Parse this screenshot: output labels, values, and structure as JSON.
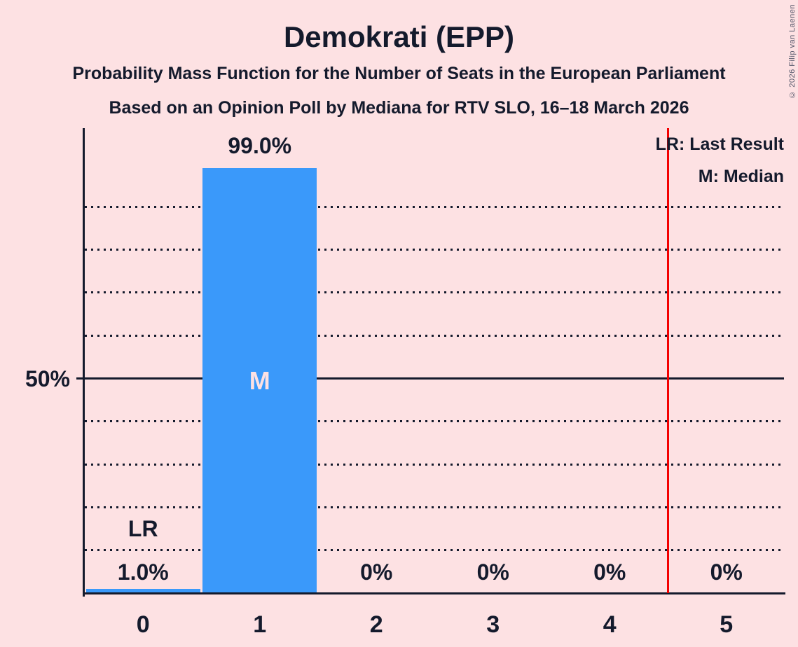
{
  "header": {
    "title": "Demokrati (EPP)",
    "subtitle1": "Probability Mass Function for the Number of Seats in the European Parliament",
    "subtitle2": "Based on an Opinion Poll by Mediana for RTV SLO, 16–18 March 2026"
  },
  "legend": {
    "line1": "LR: Last Result",
    "line2": "M: Median"
  },
  "copyright": "© 2026 Filip van Laenen",
  "chart_data": {
    "type": "bar",
    "title": "Demokrati (EPP)",
    "categories": [
      "0",
      "1",
      "2",
      "3",
      "4",
      "5"
    ],
    "values": [
      1.0,
      99.0,
      0,
      0,
      0,
      0
    ],
    "bar_labels": [
      "1.0%",
      "99.0%",
      "0%",
      "0%",
      "0%",
      "0%"
    ],
    "ylim": [
      0,
      100
    ],
    "ytick_value": 50,
    "ytick_label": "50%",
    "gridline_values": [
      10,
      20,
      30,
      40,
      60,
      70,
      80,
      90
    ],
    "solid_line_value": 50,
    "grid_style": "dotted",
    "median_category": "1",
    "median_marker": "M",
    "last_result_category": "0",
    "last_result_marker": "LR",
    "last_result_line_x": 4.5,
    "legend_position": "top-right",
    "colors": {
      "bar": "#3A99FA",
      "background": "#FDE1E3",
      "text": "#141A2C",
      "last_result_line": "#F40000",
      "median_label": "#FDE1E3"
    }
  }
}
